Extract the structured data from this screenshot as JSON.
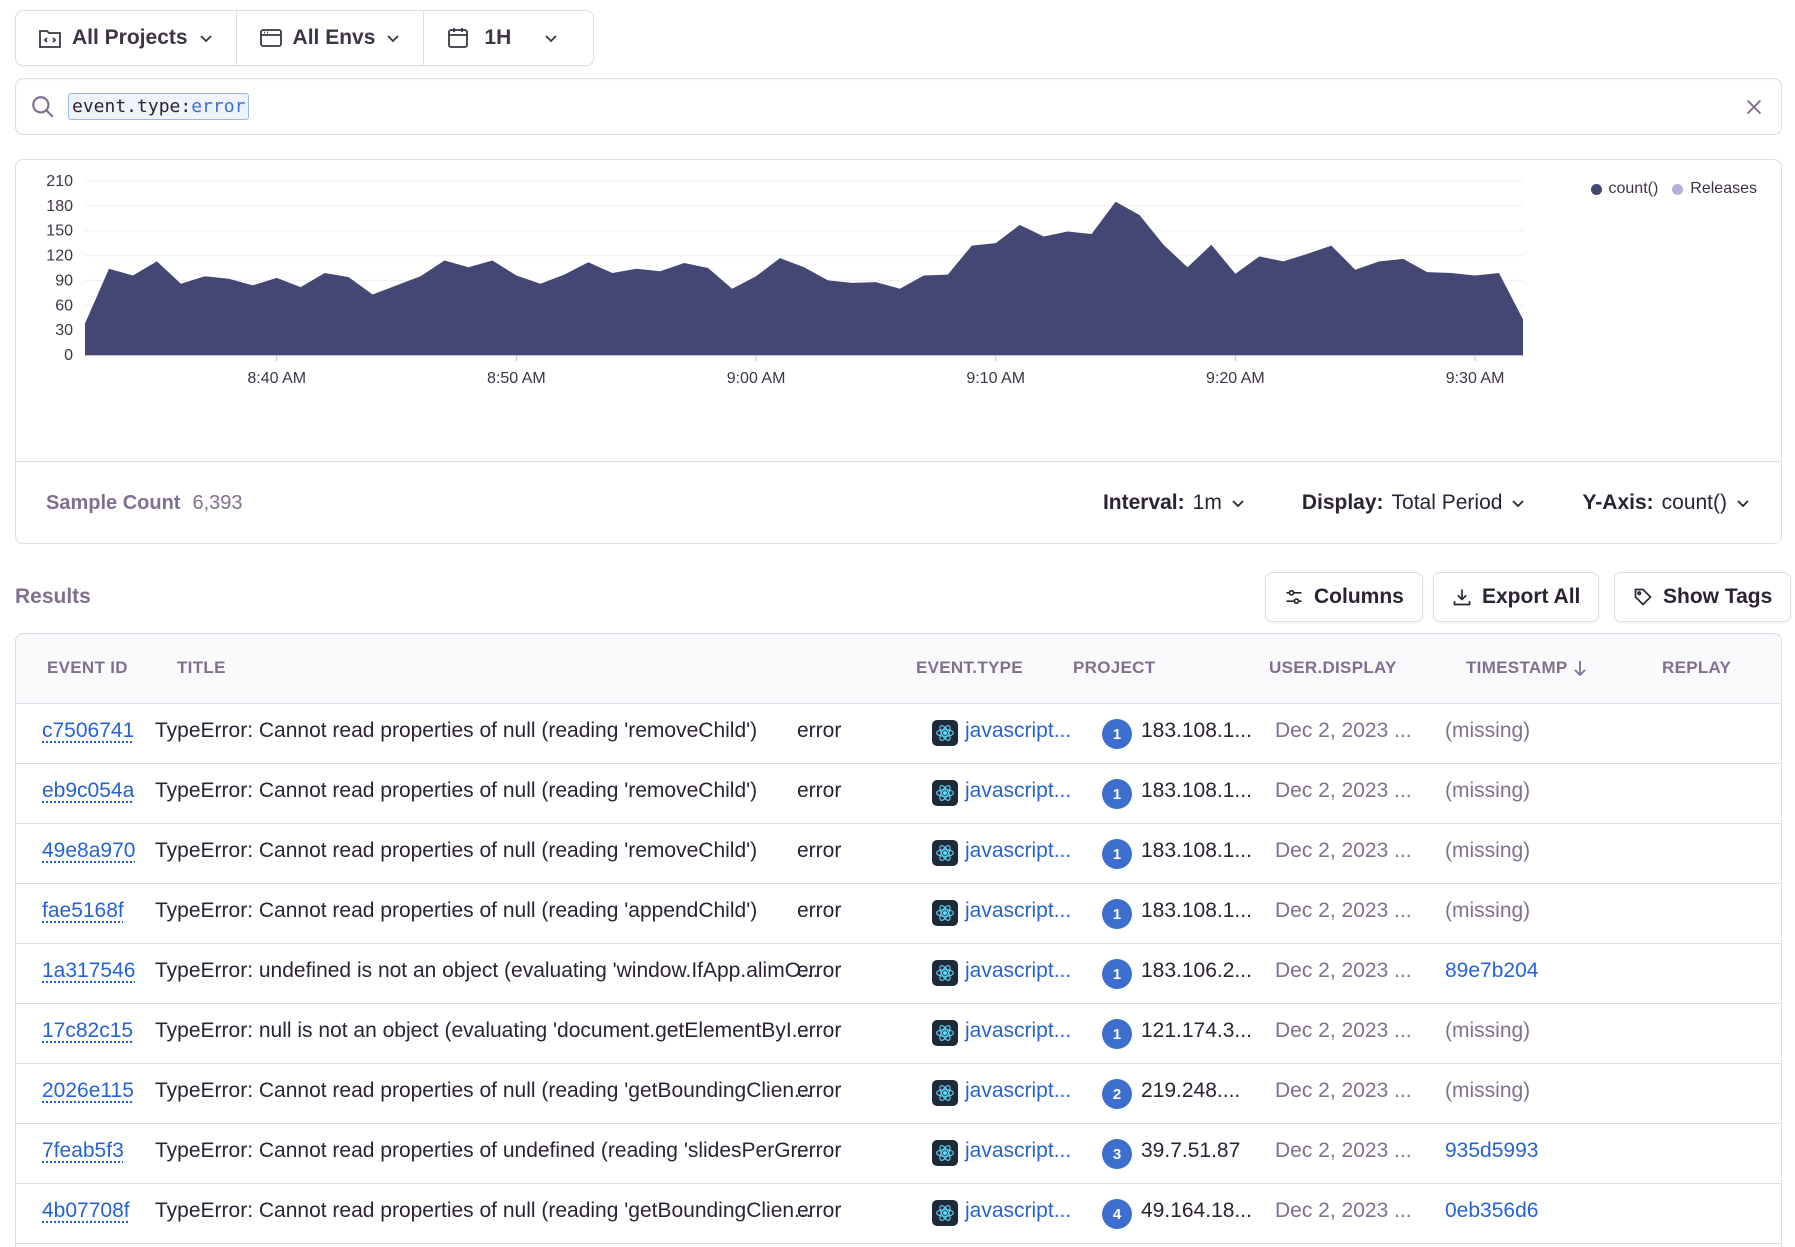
{
  "filters": {
    "projects": "All Projects",
    "envs": "All Envs",
    "period": "1H"
  },
  "search": {
    "key": "event.type:",
    "value": "error"
  },
  "chart_data": {
    "type": "area",
    "legend": [
      "count()",
      "Releases"
    ],
    "colors": {
      "count": "#444674",
      "releases": "#b5aee3"
    },
    "ylabel": "",
    "ylim": [
      0,
      210
    ],
    "yticks": [
      "0",
      "30",
      "60",
      "90",
      "120",
      "150",
      "180",
      "210"
    ],
    "xticks": [
      "8:40 AM",
      "8:50 AM",
      "9:00 AM",
      "9:10 AM",
      "9:20 AM",
      "9:30 AM"
    ],
    "series": [
      {
        "values": [
          38,
          104,
          96,
          113,
          86,
          95,
          92,
          84,
          93,
          82,
          99,
          94,
          73,
          84,
          95,
          114,
          106,
          114,
          96,
          86,
          97,
          112,
          99,
          104,
          101,
          111,
          105,
          80,
          95,
          117,
          106,
          90,
          87,
          88,
          80,
          96,
          97,
          132,
          135,
          157,
          143,
          149,
          146,
          185,
          169,
          133,
          106,
          133,
          98,
          119,
          113,
          122,
          132,
          103,
          113,
          116,
          100,
          99,
          96,
          99,
          43
        ]
      }
    ]
  },
  "footer": {
    "sample_label": "Sample Count",
    "sample_value": "6,393",
    "interval_label": "Interval:",
    "interval_value": "1m",
    "display_label": "Display:",
    "display_value": "Total Period",
    "yaxis_label": "Y-Axis:",
    "yaxis_value": "count()"
  },
  "results": {
    "label": "Results",
    "columns_btn": "Columns",
    "export_btn": "Export All",
    "tags_btn": "Show Tags"
  },
  "table": {
    "headers": [
      "EVENT ID",
      "TITLE",
      "EVENT.TYPE",
      "PROJECT",
      "USER.DISPLAY",
      "TIMESTAMP",
      "REPLAY"
    ],
    "rows": [
      {
        "id": "c7506741",
        "title": "TypeError: Cannot read properties of null (reading 'removeChild')",
        "type": "error",
        "project": "javascript...",
        "badge": "1",
        "user": "183.108.1...",
        "ts": "Dec 2, 2023 ...",
        "replay": "(missing)"
      },
      {
        "id": "eb9c054a",
        "title": "TypeError: Cannot read properties of null (reading 'removeChild')",
        "type": "error",
        "project": "javascript...",
        "badge": "1",
        "user": "183.108.1...",
        "ts": "Dec 2, 2023 ...",
        "replay": "(missing)"
      },
      {
        "id": "49e8a970",
        "title": "TypeError: Cannot read properties of null (reading 'removeChild')",
        "type": "error",
        "project": "javascript...",
        "badge": "1",
        "user": "183.108.1...",
        "ts": "Dec 2, 2023 ...",
        "replay": "(missing)"
      },
      {
        "id": "fae5168f",
        "title": "TypeError: Cannot read properties of null (reading 'appendChild')",
        "type": "error",
        "project": "javascript...",
        "badge": "1",
        "user": "183.108.1...",
        "ts": "Dec 2, 2023 ...",
        "replay": "(missing)"
      },
      {
        "id": "1a317546",
        "title": "TypeError: undefined is not an object (evaluating 'window.IfApp.alimO...",
        "type": "error",
        "project": "javascript...",
        "badge": "1",
        "user": "183.106.2...",
        "ts": "Dec 2, 2023 ...",
        "replay": "89e7b204"
      },
      {
        "id": "17c82c15",
        "title": "TypeError: null is not an object (evaluating 'document.getElementByI...",
        "type": "error",
        "project": "javascript...",
        "badge": "1",
        "user": "121.174.3...",
        "ts": "Dec 2, 2023 ...",
        "replay": "(missing)"
      },
      {
        "id": "2026e115",
        "title": "TypeError: Cannot read properties of null (reading 'getBoundingClien...",
        "type": "error",
        "project": "javascript...",
        "badge": "2",
        "user": "219.248....",
        "ts": "Dec 2, 2023 ...",
        "replay": "(missing)"
      },
      {
        "id": "7feab5f3",
        "title": "TypeError: Cannot read properties of undefined (reading 'slidesPerGr...",
        "type": "error",
        "project": "javascript...",
        "badge": "3",
        "user": "39.7.51.87",
        "ts": "Dec 2, 2023 ...",
        "replay": "935d5993"
      },
      {
        "id": "4b07708f",
        "title": "TypeError: Cannot read properties of null (reading 'getBoundingClien...",
        "type": "error",
        "project": "javascript...",
        "badge": "4",
        "user": "49.164.18...",
        "ts": "Dec 2, 2023 ...",
        "replay": "0eb356d6"
      }
    ]
  }
}
